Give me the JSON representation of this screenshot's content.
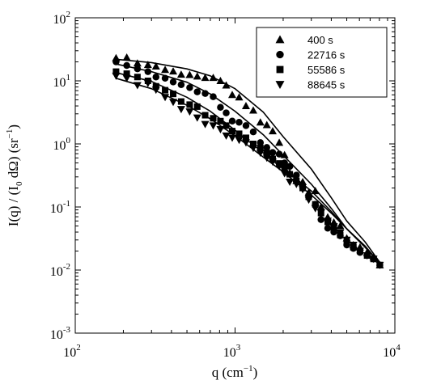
{
  "chart_data": {
    "type": "scatter",
    "xscale": "log",
    "yscale": "log",
    "xlim": [
      100,
      10000
    ],
    "ylim": [
      0.001,
      100
    ],
    "grid": false,
    "xlabel": {
      "base": "q (cm",
      "sup": "−1",
      "tail": ")"
    },
    "ylabel": {
      "p1": "I(q) / (I",
      "sub": "0",
      "p2": " dΩ)  (sr",
      "sup": "−1",
      "p3": ")"
    },
    "x_ticks": [
      {
        "value": 100,
        "base": "10",
        "exp": "2"
      },
      {
        "value": 1000,
        "base": "10",
        "exp": "3"
      },
      {
        "value": 10000,
        "base": "10",
        "exp": "4"
      }
    ],
    "y_ticks": [
      {
        "value": 0.001,
        "base": "10",
        "exp": "-3"
      },
      {
        "value": 0.01,
        "base": "10",
        "exp": "-2"
      },
      {
        "value": 0.1,
        "base": "10",
        "exp": "-1"
      },
      {
        "value": 1,
        "base": "10",
        "exp": "0"
      },
      {
        "value": 10,
        "base": "10",
        "exp": "1"
      },
      {
        "value": 100,
        "base": "10",
        "exp": "2"
      }
    ],
    "legend_position": "top-right",
    "series": [
      {
        "name": "400 s",
        "marker": "triangle-up",
        "points": [
          [
            180,
            23
          ],
          [
            210,
            23.5
          ],
          [
            245,
            19
          ],
          [
            285,
            18
          ],
          [
            320,
            17
          ],
          [
            365,
            15
          ],
          [
            410,
            14.2
          ],
          [
            460,
            12.6
          ],
          [
            520,
            12.5
          ],
          [
            580,
            11.8
          ],
          [
            650,
            11.2
          ],
          [
            730,
            11.2
          ],
          [
            810,
            10
          ],
          [
            880,
            8.5
          ],
          [
            960,
            6
          ],
          [
            1060,
            5.5
          ],
          [
            1170,
            4
          ],
          [
            1300,
            3.4
          ],
          [
            1440,
            2.2
          ],
          [
            1580,
            2
          ],
          [
            1720,
            1.6
          ],
          [
            1890,
            1.05
          ],
          [
            2040,
            0.67
          ],
          [
            2200,
            0.35
          ],
          [
            2420,
            0.26
          ],
          [
            2650,
            0.25
          ],
          [
            2890,
            0.17
          ],
          [
            3180,
            0.18
          ],
          [
            3450,
            0.1
          ],
          [
            3800,
            0.069
          ],
          [
            4150,
            0.057
          ],
          [
            4550,
            0.05
          ],
          [
            5000,
            0.032
          ],
          [
            5500,
            0.025
          ],
          [
            6050,
            0.023
          ],
          [
            6700,
            0.019
          ],
          [
            7350,
            0.016
          ],
          [
            8050,
            0.012
          ]
        ],
        "fit": [
          [
            180,
            22
          ],
          [
            300,
            19.5
          ],
          [
            500,
            15.5
          ],
          [
            700,
            12
          ],
          [
            1000,
            7.5
          ],
          [
            1500,
            3.2
          ],
          [
            2000,
            1.3
          ],
          [
            3000,
            0.4
          ],
          [
            4000,
            0.14
          ],
          [
            5000,
            0.06
          ],
          [
            6500,
            0.028
          ],
          [
            8000,
            0.0135
          ]
        ]
      },
      {
        "name": "22716 s",
        "marker": "circle",
        "points": [
          [
            180,
            20
          ],
          [
            210,
            17.5
          ],
          [
            245,
            15.5
          ],
          [
            285,
            14
          ],
          [
            320,
            11.5
          ],
          [
            365,
            11
          ],
          [
            410,
            9.6
          ],
          [
            460,
            8.7
          ],
          [
            520,
            7.8
          ],
          [
            580,
            6.7
          ],
          [
            650,
            6.3
          ],
          [
            730,
            5.6
          ],
          [
            810,
            3.8
          ],
          [
            880,
            3.1
          ],
          [
            960,
            2.3
          ],
          [
            1060,
            2.2
          ],
          [
            1170,
            1.95
          ],
          [
            1300,
            1.55
          ],
          [
            1440,
            1.05
          ],
          [
            1580,
            0.88
          ],
          [
            1720,
            0.73
          ],
          [
            1890,
            0.69
          ],
          [
            2040,
            0.5
          ],
          [
            2200,
            0.44
          ],
          [
            2420,
            0.32
          ],
          [
            2650,
            0.2
          ],
          [
            2890,
            0.15
          ],
          [
            3180,
            0.11
          ],
          [
            3450,
            0.063
          ],
          [
            3800,
            0.046
          ],
          [
            4150,
            0.04
          ],
          [
            4550,
            0.035
          ],
          [
            5000,
            0.025
          ],
          [
            5500,
            0.022
          ],
          [
            6050,
            0.019
          ],
          [
            6700,
            0.017
          ],
          [
            7350,
            0.015
          ],
          [
            8050,
            0.012
          ]
        ],
        "fit": [
          [
            180,
            18.5
          ],
          [
            300,
            14
          ],
          [
            500,
            9.5
          ],
          [
            700,
            6.2
          ],
          [
            1000,
            3.3
          ],
          [
            1500,
            1.4
          ],
          [
            2000,
            0.66
          ],
          [
            3000,
            0.23
          ],
          [
            4000,
            0.095
          ],
          [
            5000,
            0.045
          ],
          [
            6500,
            0.024
          ],
          [
            8000,
            0.0125
          ]
        ]
      },
      {
        "name": "55586 s",
        "marker": "square",
        "points": [
          [
            180,
            14
          ],
          [
            210,
            13
          ],
          [
            245,
            11.5
          ],
          [
            285,
            10
          ],
          [
            320,
            8.2
          ],
          [
            365,
            7.1
          ],
          [
            410,
            6.2
          ],
          [
            460,
            4.7
          ],
          [
            520,
            4.2
          ],
          [
            580,
            3.9
          ],
          [
            650,
            2.85
          ],
          [
            730,
            2.55
          ],
          [
            810,
            2.3
          ],
          [
            880,
            1.95
          ],
          [
            960,
            1.6
          ],
          [
            1060,
            1.45
          ],
          [
            1170,
            1.25
          ],
          [
            1300,
            1.0
          ],
          [
            1440,
            0.86
          ],
          [
            1580,
            0.72
          ],
          [
            1720,
            0.58
          ],
          [
            1890,
            0.49
          ],
          [
            2040,
            0.41
          ],
          [
            2200,
            0.33
          ],
          [
            2420,
            0.26
          ],
          [
            2650,
            0.2
          ],
          [
            2890,
            0.145
          ],
          [
            3180,
            0.11
          ],
          [
            3450,
            0.08
          ],
          [
            3800,
            0.058
          ],
          [
            4150,
            0.046
          ],
          [
            4550,
            0.036
          ],
          [
            5000,
            0.028
          ],
          [
            5500,
            0.023
          ],
          [
            6050,
            0.02
          ],
          [
            6700,
            0.017
          ],
          [
            7350,
            0.015
          ],
          [
            8050,
            0.012
          ]
        ],
        "fit": [
          [
            180,
            13.5
          ],
          [
            300,
            9.8
          ],
          [
            500,
            5.5
          ],
          [
            700,
            3.3
          ],
          [
            1000,
            1.65
          ],
          [
            1500,
            0.72
          ],
          [
            2000,
            0.4
          ],
          [
            3000,
            0.18
          ],
          [
            4000,
            0.085
          ],
          [
            5000,
            0.045
          ],
          [
            6500,
            0.023
          ],
          [
            8000,
            0.013
          ]
        ]
      },
      {
        "name": "88645 s",
        "marker": "triangle-down",
        "points": [
          [
            180,
            12
          ],
          [
            210,
            11
          ],
          [
            245,
            8.5
          ],
          [
            285,
            9.2
          ],
          [
            320,
            7.2
          ],
          [
            365,
            5.5
          ],
          [
            410,
            4.6
          ],
          [
            460,
            3.55
          ],
          [
            520,
            3.25
          ],
          [
            580,
            2.6
          ],
          [
            650,
            2.05
          ],
          [
            730,
            1.95
          ],
          [
            810,
            1.7
          ],
          [
            880,
            1.35
          ],
          [
            960,
            1.25
          ],
          [
            1060,
            1.15
          ],
          [
            1170,
            1.05
          ],
          [
            1300,
            0.86
          ],
          [
            1440,
            0.72
          ],
          [
            1580,
            0.6
          ],
          [
            1720,
            0.52
          ],
          [
            1890,
            0.44
          ],
          [
            2040,
            0.34
          ],
          [
            2200,
            0.25
          ],
          [
            2420,
            0.23
          ],
          [
            2650,
            0.19
          ],
          [
            2890,
            0.13
          ],
          [
            3180,
            0.095
          ],
          [
            3450,
            0.081
          ],
          [
            3800,
            0.06
          ],
          [
            4150,
            0.049
          ],
          [
            4550,
            0.039
          ],
          [
            5000,
            0.03
          ],
          [
            5500,
            0.025
          ],
          [
            6050,
            0.02
          ],
          [
            6700,
            0.017
          ],
          [
            7350,
            0.015
          ],
          [
            8050,
            0.012
          ]
        ],
        "fit": [
          [
            180,
            11
          ],
          [
            300,
            7.5
          ],
          [
            500,
            4.1
          ],
          [
            700,
            2.5
          ],
          [
            1000,
            1.35
          ],
          [
            1500,
            0.62
          ],
          [
            2000,
            0.36
          ],
          [
            3000,
            0.155
          ],
          [
            4000,
            0.08
          ],
          [
            5000,
            0.045
          ],
          [
            6500,
            0.024
          ],
          [
            8000,
            0.013
          ]
        ]
      }
    ]
  }
}
